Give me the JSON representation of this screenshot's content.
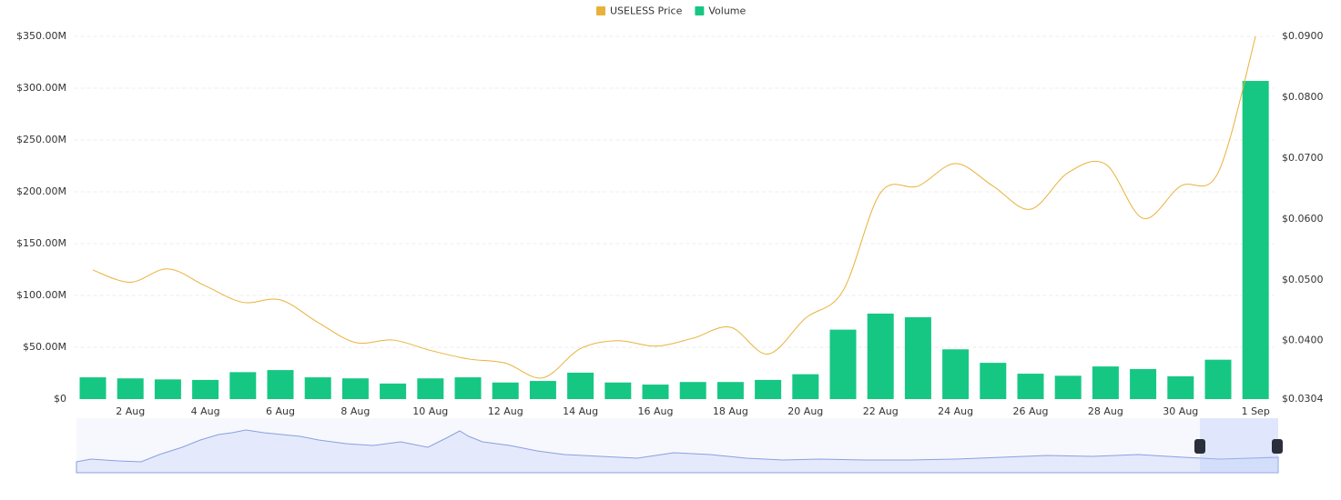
{
  "chart_data": {
    "type": "bar_line",
    "categories": [
      null,
      "2 Aug",
      null,
      "4 Aug",
      null,
      "6 Aug",
      null,
      "8 Aug",
      null,
      "10 Aug",
      null,
      "12 Aug",
      null,
      "14 Aug",
      null,
      "16 Aug",
      null,
      "18 Aug",
      null,
      "20 Aug",
      null,
      "22 Aug",
      null,
      "24 Aug",
      null,
      "26 Aug",
      null,
      "28 Aug",
      null,
      "30 Aug",
      null,
      "1 Sep"
    ],
    "series": [
      {
        "name": "Volume",
        "type": "bar",
        "color": "#16c784",
        "axis": "y",
        "values": [
          21000000,
          20000000,
          19000000,
          18500000,
          26000000,
          28000000,
          21000000,
          20000000,
          15000000,
          20000000,
          21000000,
          16000000,
          17500000,
          25500000,
          16000000,
          14000000,
          16500000,
          16500000,
          18500000,
          24000000,
          67000000,
          82500000,
          79000000,
          48000000,
          35000000,
          24500000,
          22500000,
          31500000,
          29000000,
          22000000,
          38000000,
          307000000
        ]
      },
      {
        "name": "USELESS Price",
        "type": "line",
        "color": "#e8b23a",
        "axis": "y2",
        "values": [
          0.0516,
          0.0496,
          0.0518,
          0.049,
          0.0463,
          0.0467,
          0.043,
          0.0397,
          0.0401,
          0.0384,
          0.037,
          0.0363,
          0.0339,
          0.0387,
          0.04,
          0.0391,
          0.0404,
          0.0422,
          0.0378,
          0.0437,
          0.0482,
          0.0643,
          0.0654,
          0.0691,
          0.0654,
          0.0616,
          0.0676,
          0.069,
          0.0601,
          0.0654,
          0.0676,
          0.09
        ]
      }
    ],
    "legend_order": [
      1,
      0
    ],
    "ylim": [
      0,
      350000000
    ],
    "yticks": [
      {
        "value": 0,
        "label": "$0"
      },
      {
        "value": 50000000,
        "label": "$50.00M"
      },
      {
        "value": 100000000,
        "label": "$100.00M"
      },
      {
        "value": 150000000,
        "label": "$150.00M"
      },
      {
        "value": 200000000,
        "label": "$200.00M"
      },
      {
        "value": 250000000,
        "label": "$250.00M"
      },
      {
        "value": 300000000,
        "label": "$300.00M"
      },
      {
        "value": 350000000,
        "label": "$350.00M"
      }
    ],
    "y2lim": [
      0.0304,
      0.09
    ],
    "y2ticks": [
      {
        "value": 0.0304,
        "label": "$0.0304"
      },
      {
        "value": 0.04,
        "label": "$0.0400"
      },
      {
        "value": 0.05,
        "label": "$0.0500"
      },
      {
        "value": 0.06,
        "label": "$0.0600"
      },
      {
        "value": 0.07,
        "label": "$0.0700"
      },
      {
        "value": 0.08,
        "label": "$0.0800"
      },
      {
        "value": 0.09,
        "label": "$0.0900"
      }
    ],
    "grid": true
  }
}
